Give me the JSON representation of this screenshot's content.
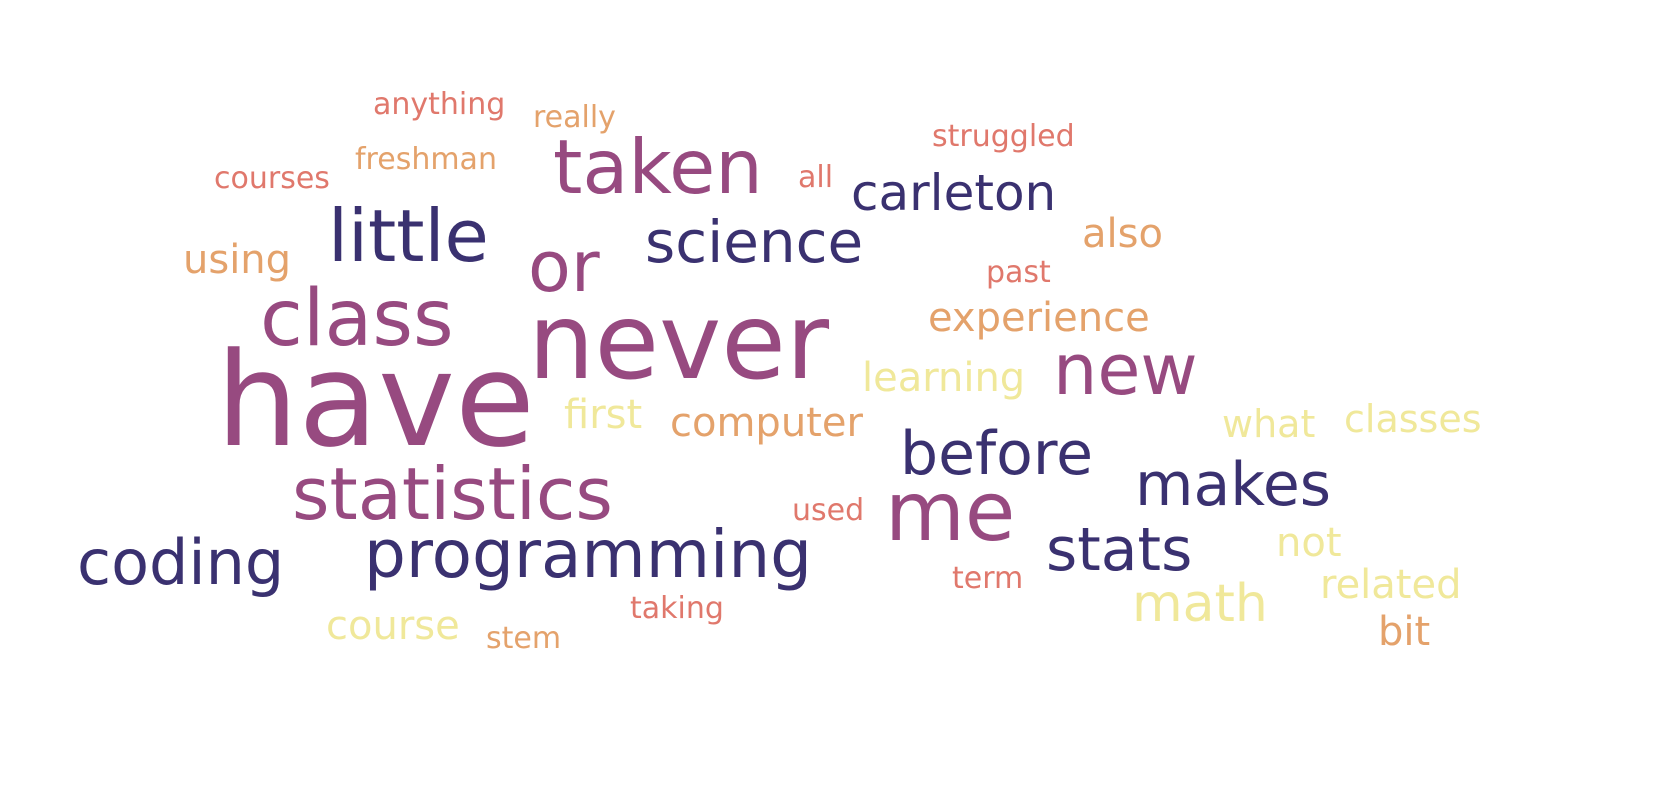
{
  "palette": {
    "navy": "#3a3170",
    "plum": "#974a80",
    "coral": "#e0786c",
    "sand": "#e4a26b",
    "pale_yellow": "#f0e89a"
  },
  "words": [
    {
      "text": "have",
      "color": "#974a80"
    },
    {
      "text": "never",
      "color": "#974a80"
    },
    {
      "text": "taken",
      "color": "#974a80"
    },
    {
      "text": "class",
      "color": "#974a80"
    },
    {
      "text": "little",
      "color": "#3a3170"
    },
    {
      "text": "or",
      "color": "#974a80"
    },
    {
      "text": "science",
      "color": "#3a3170"
    },
    {
      "text": "carleton",
      "color": "#3a3170"
    },
    {
      "text": "statistics",
      "color": "#974a80"
    },
    {
      "text": "programming",
      "color": "#3a3170"
    },
    {
      "text": "coding",
      "color": "#3a3170"
    },
    {
      "text": "me",
      "color": "#974a80"
    },
    {
      "text": "new",
      "color": "#974a80"
    },
    {
      "text": "before",
      "color": "#3a3170"
    },
    {
      "text": "makes",
      "color": "#3a3170"
    },
    {
      "text": "stats",
      "color": "#3a3170"
    },
    {
      "text": "math",
      "color": "#f0e89a"
    },
    {
      "text": "computer",
      "color": "#e4a26b"
    },
    {
      "text": "experience",
      "color": "#e4a26b"
    },
    {
      "text": "learning",
      "color": "#f0e89a"
    },
    {
      "text": "classes",
      "color": "#f0e89a"
    },
    {
      "text": "what",
      "color": "#f0e89a"
    },
    {
      "text": "first",
      "color": "#f0e89a"
    },
    {
      "text": "using",
      "color": "#e4a26b"
    },
    {
      "text": "also",
      "color": "#e4a26b"
    },
    {
      "text": "course",
      "color": "#f0e89a"
    },
    {
      "text": "related",
      "color": "#f0e89a"
    },
    {
      "text": "not",
      "color": "#f0e89a"
    },
    {
      "text": "bit",
      "color": "#e4a26b"
    },
    {
      "text": "anything",
      "color": "#e0786c"
    },
    {
      "text": "really",
      "color": "#e4a26b"
    },
    {
      "text": "freshman",
      "color": "#e4a26b"
    },
    {
      "text": "courses",
      "color": "#e0786c"
    },
    {
      "text": "struggled",
      "color": "#e0786c"
    },
    {
      "text": "all",
      "color": "#e0786c"
    },
    {
      "text": "past",
      "color": "#e0786c"
    },
    {
      "text": "used",
      "color": "#e0786c"
    },
    {
      "text": "term",
      "color": "#e0786c"
    },
    {
      "text": "taking",
      "color": "#e0786c"
    },
    {
      "text": "stem",
      "color": "#e4a26b"
    }
  ]
}
